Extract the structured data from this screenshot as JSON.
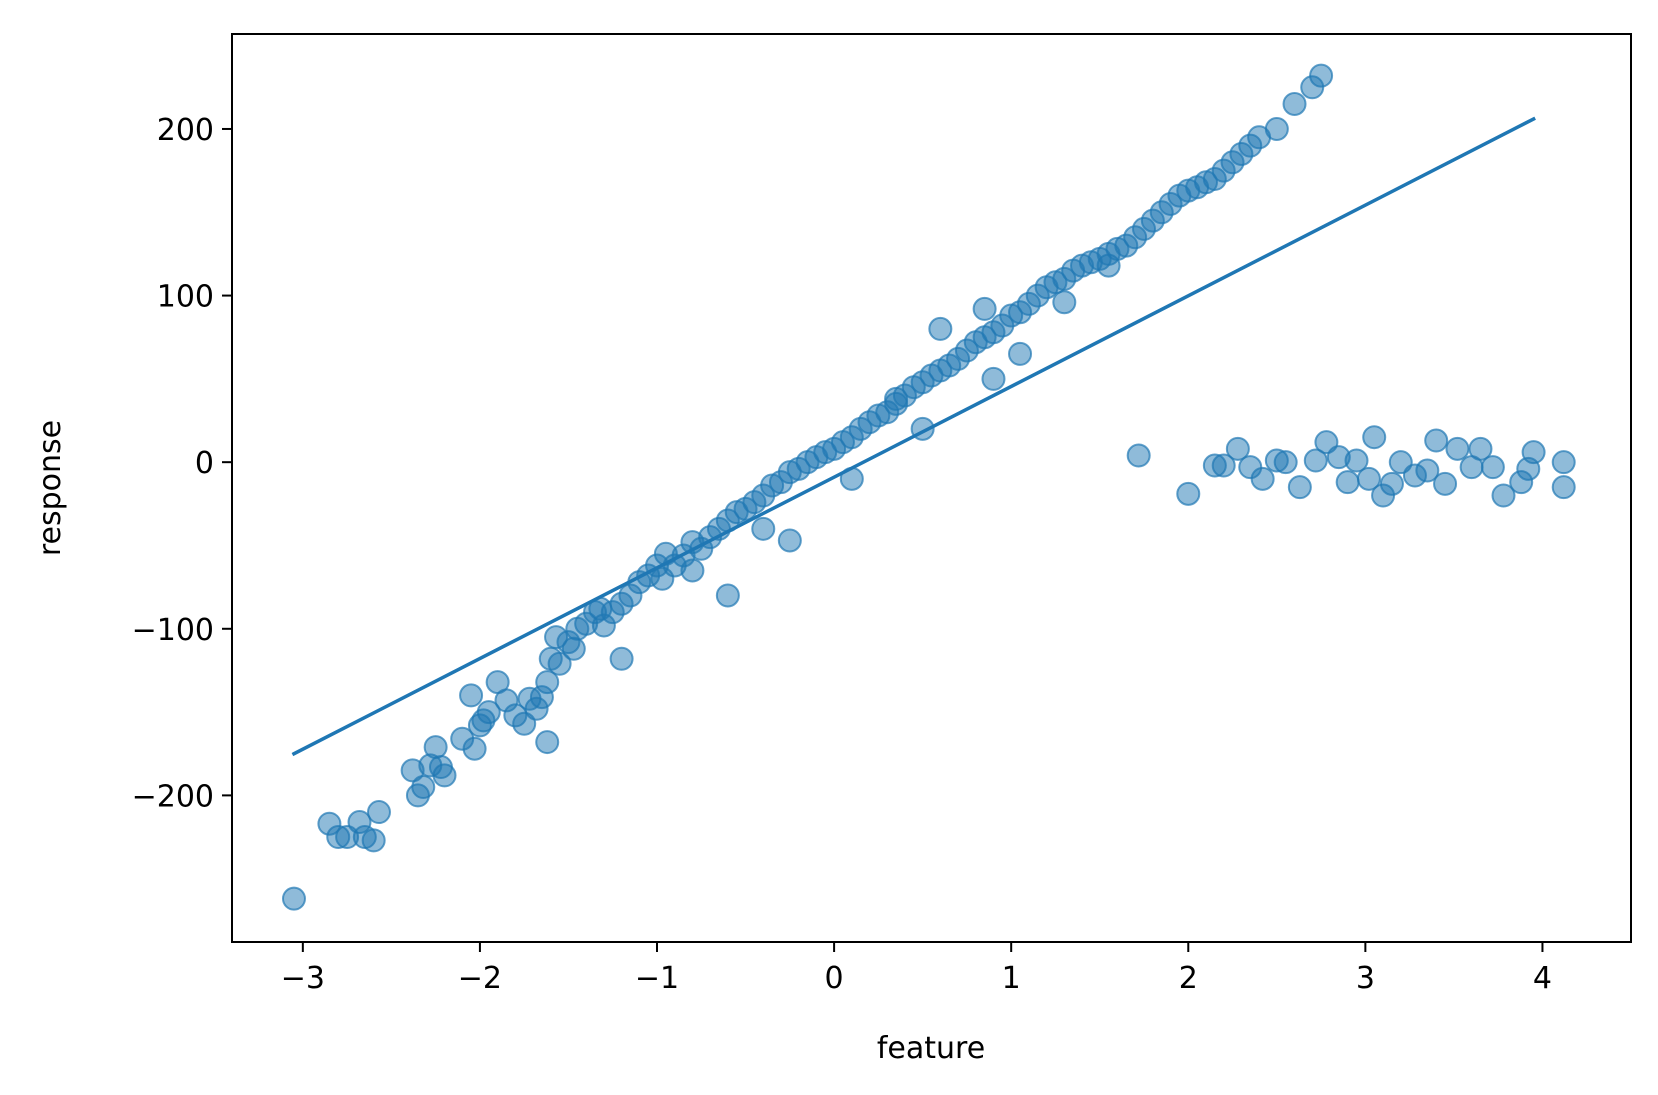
{
  "chart_data": {
    "type": "scatter",
    "title": "",
    "xlabel": "feature",
    "ylabel": "response",
    "xlim": [
      -3.4,
      4.5
    ],
    "ylim": [
      -288,
      257
    ],
    "xticks": [
      -3,
      -2,
      -1,
      0,
      1,
      2,
      3,
      4
    ],
    "xtick_labels": [
      "−3",
      "−2",
      "−1",
      "0",
      "1",
      "2",
      "3",
      "4"
    ],
    "yticks": [
      -200,
      -100,
      0,
      100,
      200
    ],
    "ytick_labels": [
      "−200",
      "−100",
      "0",
      "100",
      "200"
    ],
    "grid": false,
    "colors": {
      "points": "#1f77b4",
      "line": "#1f77b4",
      "axes": "#000000"
    },
    "series": [
      {
        "type": "scatter",
        "alpha": 0.5,
        "x": [
          -3.05,
          -2.85,
          -2.8,
          -2.75,
          -2.68,
          -2.65,
          -2.6,
          -2.57,
          -2.38,
          -2.35,
          -2.32,
          -2.28,
          -2.25,
          -2.22,
          -2.2,
          -2.1,
          -2.05,
          -2.03,
          -2.0,
          -1.98,
          -1.95,
          -1.9,
          -1.85,
          -1.8,
          -1.75,
          -1.72,
          -1.68,
          -1.65,
          -1.62,
          -1.6,
          -1.57,
          -1.55,
          -1.5,
          -1.47,
          -1.45,
          -1.4,
          -1.35,
          -1.32,
          -1.3,
          -1.25,
          -1.2,
          -1.15,
          -1.1,
          -1.05,
          -1.0,
          -0.97,
          -0.95,
          -0.9,
          -0.85,
          -0.8,
          -0.75,
          -0.7,
          -0.65,
          -0.6,
          -0.55,
          -0.5,
          -0.45,
          -0.4,
          -0.35,
          -0.3,
          -0.25,
          -0.2,
          -0.15,
          -0.1,
          -0.05,
          0.0,
          0.05,
          0.1,
          0.15,
          0.2,
          0.25,
          0.3,
          0.35,
          0.4,
          0.45,
          0.5,
          0.55,
          0.6,
          0.65,
          0.7,
          0.75,
          0.8,
          0.85,
          0.9,
          0.95,
          1.0,
          1.05,
          1.1,
          1.15,
          1.2,
          1.25,
          1.3,
          1.35,
          1.4,
          1.45,
          1.5,
          1.55,
          1.6,
          1.65,
          1.7,
          1.75,
          1.8,
          1.85,
          1.9,
          1.95,
          2.0,
          2.05,
          2.1,
          2.15,
          2.2,
          2.25,
          2.3,
          2.35,
          2.4,
          2.5,
          2.6,
          2.7,
          2.75,
          -1.62,
          -1.2,
          -0.6,
          -0.25,
          0.35,
          0.6,
          0.85,
          1.05,
          1.3,
          1.55,
          1.72,
          2.0,
          2.15,
          2.2,
          2.28,
          2.35,
          2.42,
          2.5,
          2.55,
          2.63,
          2.72,
          2.78,
          2.85,
          2.9,
          2.95,
          3.02,
          3.05,
          3.1,
          3.15,
          3.2,
          3.28,
          3.35,
          3.4,
          3.45,
          3.52,
          3.6,
          3.65,
          3.72,
          3.78,
          3.88,
          3.92,
          3.95,
          4.12,
          4.12,
          -0.8,
          -0.4,
          0.1,
          0.5,
          0.9
        ],
        "y": [
          -262,
          -217,
          -225,
          -225,
          -216,
          -225,
          -227,
          -210,
          -185,
          -200,
          -195,
          -182,
          -171,
          -183,
          -188,
          -166,
          -140,
          -172,
          -158,
          -155,
          -150,
          -132,
          -143,
          -152,
          -157,
          -142,
          -148,
          -141,
          -132,
          -118,
          -105,
          -121,
          -108,
          -112,
          -100,
          -97,
          -90,
          -88,
          -98,
          -90,
          -85,
          -80,
          -72,
          -68,
          -62,
          -70,
          -55,
          -62,
          -56,
          -48,
          -52,
          -45,
          -40,
          -35,
          -30,
          -28,
          -24,
          -20,
          -14,
          -12,
          -6,
          -4,
          0,
          3,
          6,
          8,
          12,
          15,
          20,
          24,
          28,
          30,
          38,
          40,
          45,
          48,
          52,
          55,
          58,
          62,
          67,
          72,
          75,
          78,
          82,
          88,
          90,
          95,
          100,
          105,
          108,
          110,
          115,
          118,
          120,
          122,
          125,
          128,
          130,
          135,
          140,
          145,
          150,
          155,
          160,
          163,
          165,
          168,
          170,
          175,
          180,
          185,
          190,
          195,
          200,
          215,
          225,
          232,
          -168,
          -118,
          -80,
          -47,
          35,
          80,
          92,
          65,
          96,
          118,
          4,
          -19,
          -2,
          -2,
          8,
          -3,
          -10,
          1,
          0,
          -15,
          1,
          12,
          3,
          -12,
          1,
          -10,
          15,
          -20,
          -13,
          0,
          -8,
          -5,
          13,
          -13,
          8,
          -3,
          8,
          -3,
          -20,
          -12,
          -4,
          6,
          -15,
          0,
          -65,
          -40,
          -10,
          20,
          50
        ],
        "name": ""
      },
      {
        "type": "line",
        "x": [
          -3.05,
          3.95
        ],
        "y": [
          -175,
          206
        ],
        "name": ""
      }
    ]
  }
}
